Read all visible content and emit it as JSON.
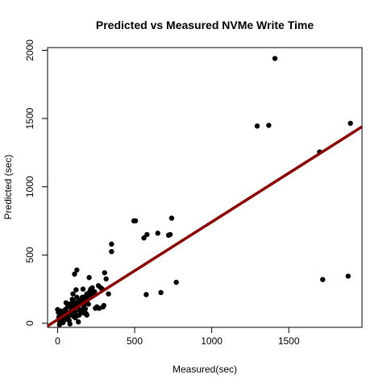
{
  "chart_data": {
    "type": "scatter",
    "title": "Predicted vs Measured NVMe Write Time",
    "xlabel": "Measured(sec)",
    "ylabel": "Predicted (sec)",
    "xlim": [
      -65,
      1975
    ],
    "ylim": [
      -30,
      2020
    ],
    "x_ticks": [
      0,
      500,
      1000,
      1500
    ],
    "y_ticks": [
      0,
      500,
      1000,
      1500,
      2000
    ],
    "grid": false,
    "legend": "none",
    "point_color": "#000000",
    "line_color": "#8b0000",
    "fit_line": {
      "x": [
        -65,
        1975
      ],
      "y": [
        -20,
        1440
      ]
    },
    "points": [
      [
        1410,
        1940
      ],
      [
        1900,
        1465
      ],
      [
        1295,
        1445
      ],
      [
        1370,
        1450
      ],
      [
        1700,
        1255
      ],
      [
        740,
        770
      ],
      [
        495,
        750
      ],
      [
        505,
        750
      ],
      [
        560,
        625
      ],
      [
        580,
        650
      ],
      [
        650,
        660
      ],
      [
        720,
        645
      ],
      [
        730,
        650
      ],
      [
        350,
        580
      ],
      [
        350,
        525
      ],
      [
        1885,
        345
      ],
      [
        1720,
        320
      ],
      [
        770,
        300
      ],
      [
        575,
        210
      ],
      [
        670,
        225
      ],
      [
        305,
        370
      ],
      [
        315,
        325
      ],
      [
        330,
        215
      ],
      [
        125,
        390
      ],
      [
        110,
        360
      ],
      [
        205,
        335
      ],
      [
        265,
        275
      ],
      [
        280,
        260
      ],
      [
        290,
        250
      ],
      [
        295,
        120
      ],
      [
        300,
        130
      ],
      [
        270,
        110
      ],
      [
        230,
        210
      ],
      [
        210,
        235
      ],
      [
        190,
        215
      ],
      [
        200,
        140
      ],
      [
        165,
        250
      ],
      [
        160,
        190
      ],
      [
        140,
        165
      ],
      [
        170,
        130
      ],
      [
        180,
        105
      ],
      [
        185,
        70
      ],
      [
        150,
        80
      ],
      [
        120,
        245
      ],
      [
        100,
        215
      ],
      [
        95,
        175
      ],
      [
        110,
        130
      ],
      [
        130,
        120
      ],
      [
        100,
        95
      ],
      [
        85,
        85
      ],
      [
        90,
        60
      ],
      [
        70,
        50
      ],
      [
        60,
        80
      ],
      [
        50,
        100
      ],
      [
        40,
        65
      ],
      [
        30,
        40
      ],
      [
        20,
        90
      ],
      [
        15,
        55
      ],
      [
        10,
        20
      ],
      [
        25,
        10
      ],
      [
        45,
        25
      ],
      [
        5,
        80
      ],
      [
        0,
        100
      ],
      [
        8,
        45
      ],
      [
        35,
        5
      ],
      [
        60,
        30
      ],
      [
        75,
        20
      ],
      [
        115,
        40
      ],
      [
        125,
        55
      ],
      [
        140,
        60
      ],
      [
        150,
        140
      ],
      [
        155,
        175
      ],
      [
        175,
        160
      ],
      [
        180,
        195
      ],
      [
        195,
        180
      ],
      [
        215,
        250
      ],
      [
        225,
        260
      ],
      [
        240,
        230
      ],
      [
        245,
        110
      ],
      [
        255,
        120
      ],
      [
        90,
        110
      ],
      [
        80,
        140
      ],
      [
        65,
        120
      ],
      [
        55,
        150
      ],
      [
        95,
        150
      ],
      [
        130,
        150
      ],
      [
        105,
        50
      ],
      [
        115,
        85
      ],
      [
        12,
        -10
      ],
      [
        20,
        0
      ],
      [
        80,
        -5
      ],
      [
        135,
        10
      ],
      [
        160,
        100
      ],
      [
        170,
        75
      ],
      [
        190,
        60
      ],
      [
        200,
        180
      ],
      [
        50,
        45
      ],
      [
        35,
        70
      ],
      [
        65,
        70
      ],
      [
        145,
        95
      ],
      [
        105,
        160
      ],
      [
        125,
        190
      ],
      [
        185,
        150
      ],
      [
        210,
        200
      ]
    ]
  }
}
